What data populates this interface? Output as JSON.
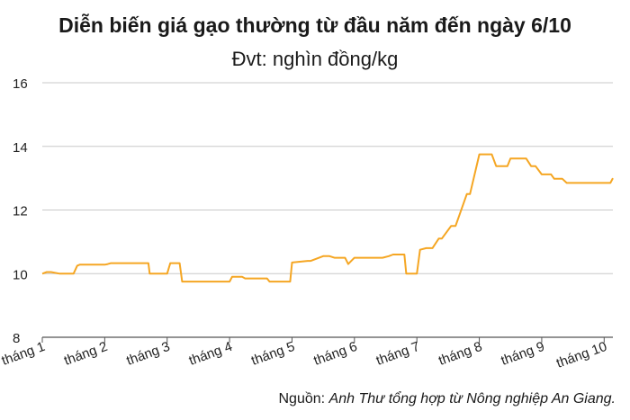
{
  "title": "Diễn biến giá gạo thường từ đầu năm đến ngày 6/10",
  "subtitle": "Đvt: nghìn đồng/kg",
  "source": {
    "prefix": "Nguồn:",
    "text": "Anh Thư tổng hợp từ Nông nghiệp An Giang."
  },
  "chart_data": {
    "type": "line",
    "title": "Diễn biến giá gạo thường từ đầu năm đến ngày 6/10",
    "subtitle": "Đvt: nghìn đồng/kg",
    "xlabel": "",
    "ylabel": "",
    "ylim": [
      8,
      16
    ],
    "yticks": [
      8,
      10,
      12,
      14,
      16
    ],
    "xticks": [
      "tháng 1",
      "tháng 2",
      "tháng 3",
      "tháng 4",
      "tháng 5",
      "tháng 6",
      "tháng 7",
      "tháng 8",
      "tháng 9",
      "tháng 10"
    ],
    "grid": "horizontal",
    "color": "#f5a623",
    "series": [
      {
        "x": [
          1.0,
          1.07,
          1.14,
          1.28,
          1.5,
          1.56,
          1.6,
          2.0,
          2.05,
          2.1,
          2.5,
          2.7,
          2.72,
          2.98,
          3.0,
          3.05,
          3.2,
          3.24,
          3.6,
          4.0,
          4.04,
          4.2,
          4.25,
          4.6,
          4.64,
          4.97,
          5.0,
          5.25,
          5.3,
          5.5,
          5.6,
          5.68,
          5.72,
          5.85,
          5.9,
          6.0,
          6.45,
          6.55,
          6.62,
          6.8,
          6.83,
          7.0,
          7.05,
          7.15,
          7.25,
          7.35,
          7.4,
          7.55,
          7.62,
          7.8,
          7.85,
          8.0,
          8.05,
          8.2,
          8.27,
          8.45,
          8.5,
          8.75,
          8.83,
          8.9,
          9.0,
          9.15,
          9.2,
          9.33,
          9.4,
          9.8,
          10.1,
          10.14
        ]
      },
      {
        "name": "",
        "values": [
          10.0,
          10.05,
          10.05,
          10.0,
          10.0,
          10.25,
          10.28,
          10.28,
          10.3,
          10.33,
          10.33,
          10.33,
          10.0,
          10.0,
          10.0,
          10.33,
          10.33,
          9.75,
          9.75,
          9.75,
          9.9,
          9.9,
          9.85,
          9.85,
          9.75,
          9.75,
          10.35,
          10.4,
          10.4,
          10.55,
          10.55,
          10.5,
          10.5,
          10.5,
          10.3,
          10.5,
          10.5,
          10.55,
          10.6,
          10.6,
          10.0,
          10.0,
          10.75,
          10.8,
          10.8,
          11.1,
          11.1,
          11.5,
          11.5,
          12.5,
          12.5,
          13.75,
          13.75,
          13.75,
          13.38,
          13.38,
          13.62,
          13.62,
          13.38,
          13.38,
          13.12,
          13.12,
          12.98,
          12.98,
          12.85,
          12.85,
          12.85,
          13.0
        ]
      }
    ]
  }
}
